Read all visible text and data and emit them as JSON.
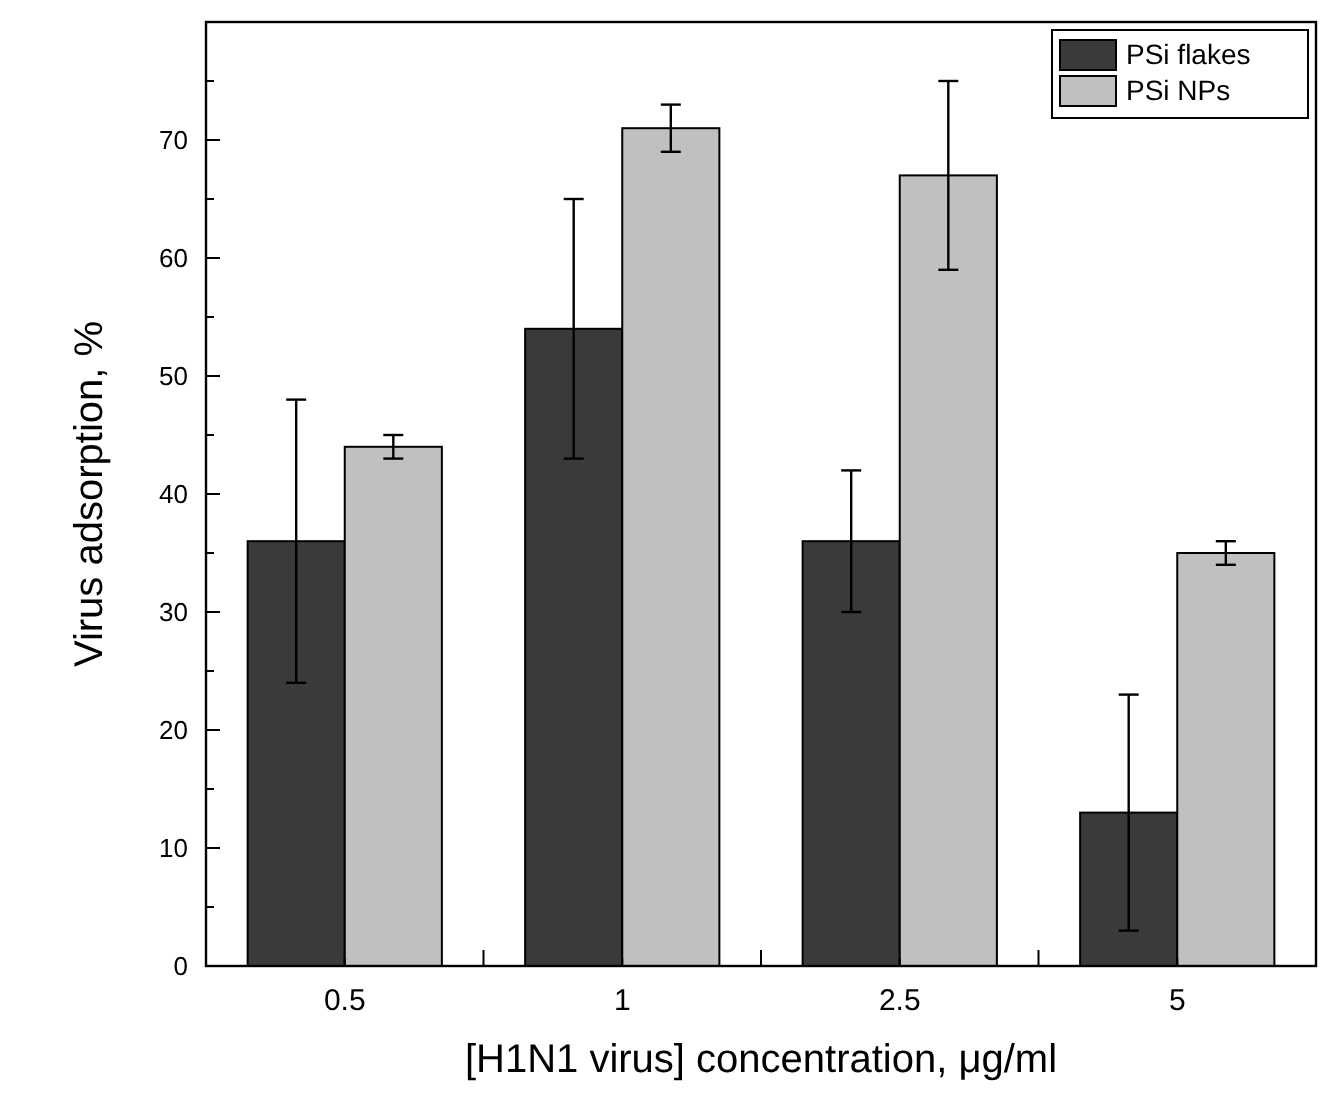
{
  "chart_data": {
    "type": "bar",
    "xlabel": "[H1N1 virus] concentration, μg/ml",
    "ylabel": "Virus adsorption, %",
    "categories": [
      "0.5",
      "1",
      "2.5",
      "5"
    ],
    "series": [
      {
        "name": "PSi flakes",
        "color": "#3a3a3a",
        "values": [
          36,
          54,
          36,
          13
        ],
        "errors": [
          [
            24,
            48
          ],
          [
            43,
            65
          ],
          [
            30,
            42
          ],
          [
            3,
            23
          ]
        ]
      },
      {
        "name": "PSi NPs",
        "color": "#c0c0c0",
        "values": [
          44,
          71,
          67,
          35
        ],
        "errors": [
          [
            43,
            45
          ],
          [
            69,
            73
          ],
          [
            59,
            75
          ],
          [
            34,
            36
          ]
        ]
      }
    ],
    "ylim": [
      0,
      80
    ],
    "yticks": [
      0,
      {
        "value": 5,
        "label": null
      },
      10,
      {
        "value": 15,
        "label": null
      },
      20,
      {
        "value": 25,
        "label": null
      },
      30,
      {
        "value": 35,
        "label": null
      },
      40,
      {
        "value": 45,
        "label": null
      },
      50,
      {
        "value": 55,
        "label": null
      },
      60,
      {
        "value": 65,
        "label": null
      },
      70,
      {
        "value": 75,
        "label": null
      }
    ],
    "grid": false,
    "legend": "top right"
  }
}
